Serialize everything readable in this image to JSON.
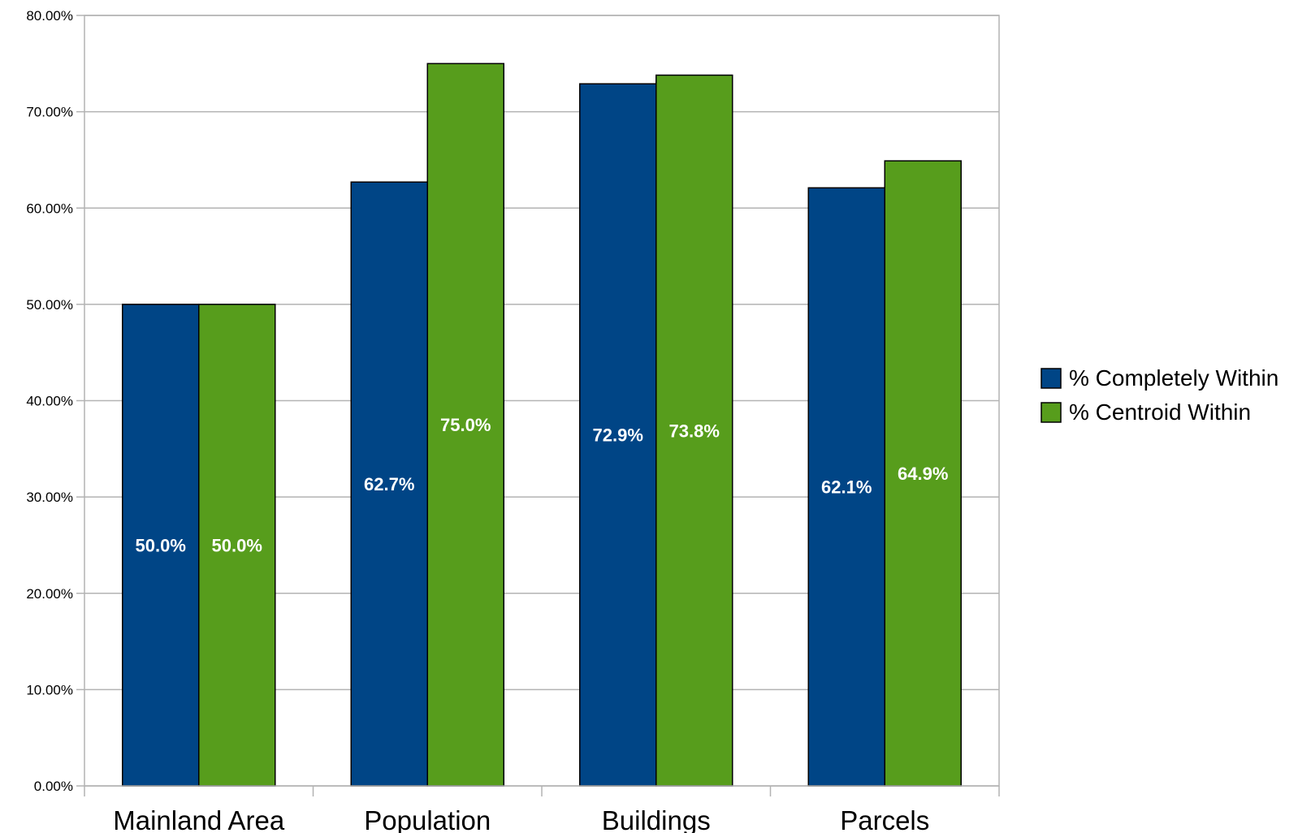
{
  "chart_data": {
    "type": "bar",
    "categories": [
      "Mainland Area",
      "Population",
      "Buildings",
      "Parcels"
    ],
    "series": [
      {
        "name": "% Completely Within",
        "color": "#004586",
        "values": [
          50.0,
          62.7,
          72.9,
          62.1
        ],
        "labels": [
          "50.0%",
          "62.7%",
          "72.9%",
          "62.1%"
        ]
      },
      {
        "name": "% Centroid Within",
        "color": "#579d1c",
        "values": [
          50.0,
          75.0,
          73.8,
          64.9
        ],
        "labels": [
          "50.0%",
          "75.0%",
          "73.8%",
          "64.9%"
        ]
      }
    ],
    "y_ticks": [
      0,
      10,
      20,
      30,
      40,
      50,
      60,
      70,
      80
    ],
    "y_tick_labels": [
      "0.00%",
      "10.00%",
      "20.00%",
      "30.00%",
      "40.00%",
      "50.00%",
      "60.00%",
      "70.00%",
      "80.00%"
    ],
    "ylim": [
      0,
      80
    ],
    "title": "",
    "xlabel": "",
    "ylabel": "",
    "grid": true,
    "legend_position": "right"
  }
}
